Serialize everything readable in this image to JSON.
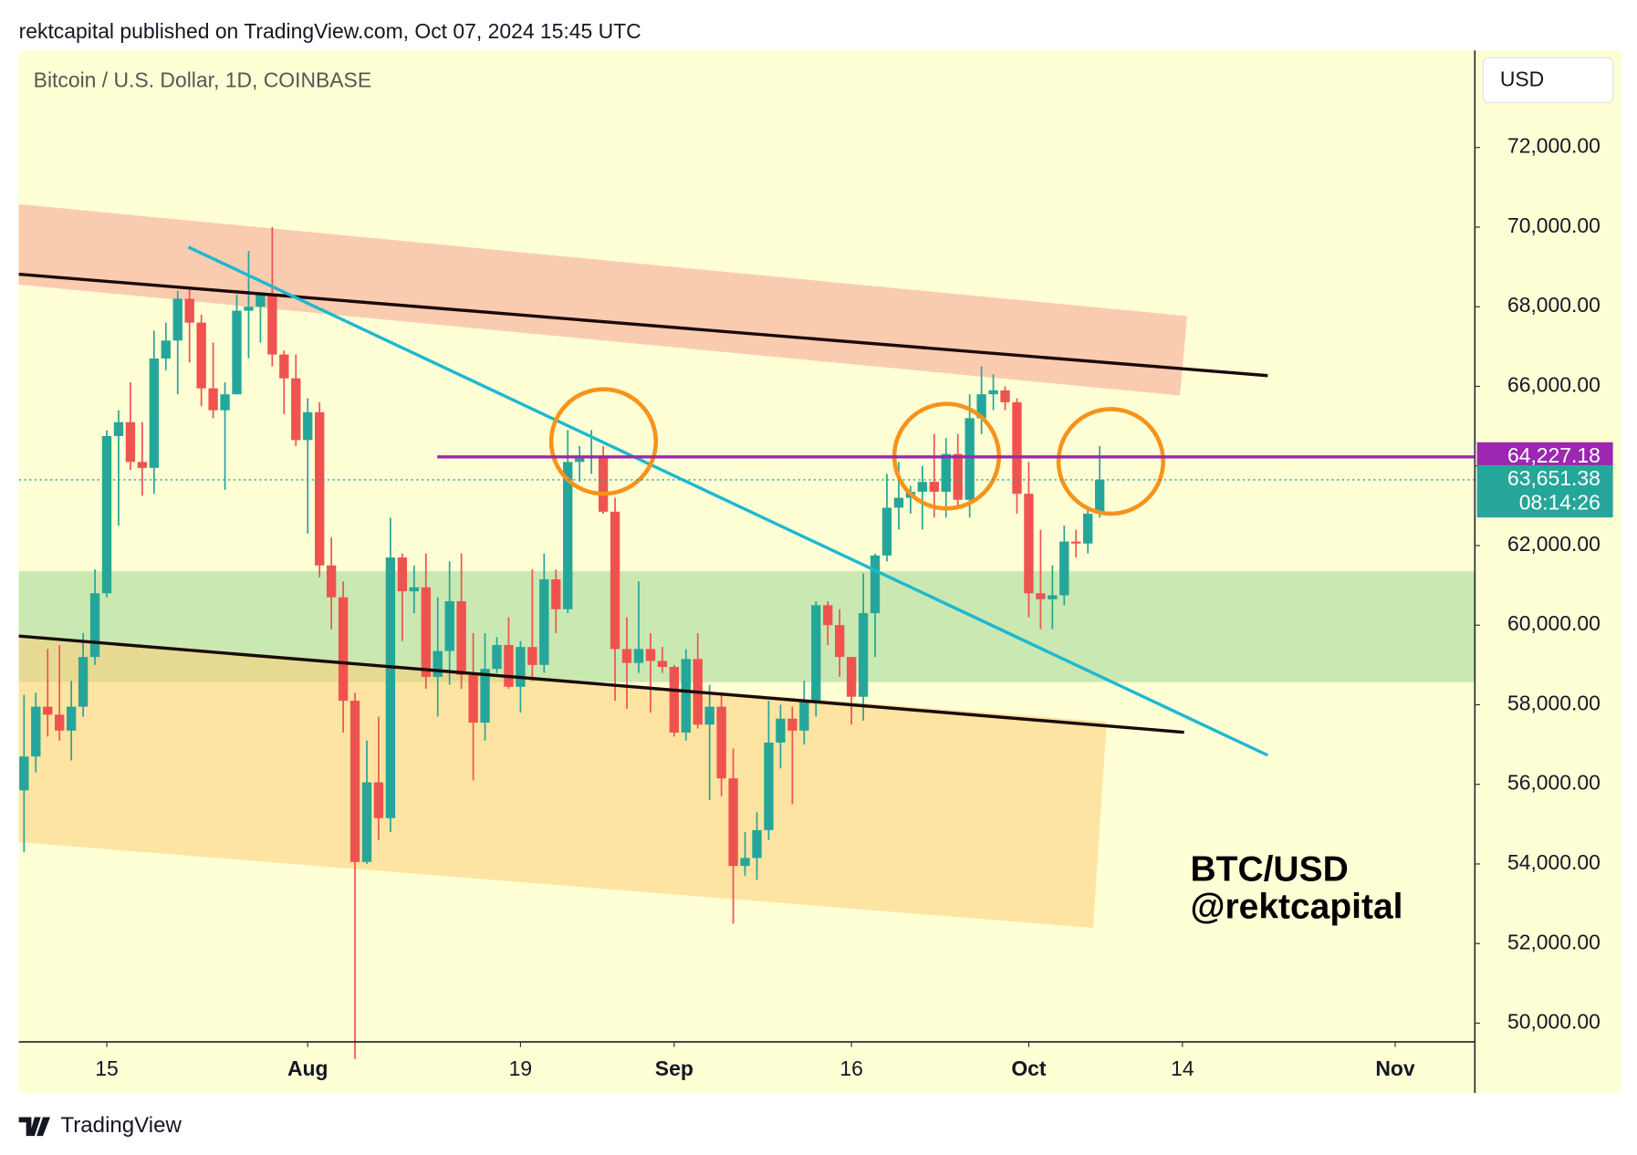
{
  "chart_data": {
    "type": "candlestick",
    "header": "rektcapital published on TradingView.com, Oct 07, 2024 15:45 UTC",
    "title": "Bitcoin / U.S. Dollar, 1D, COINBASE",
    "currency": "USD",
    "brand": "TradingView",
    "watermark": [
      "BTC/USD",
      "@rektcapital"
    ],
    "up_color": "#26a69a",
    "down_color": "#ef5350",
    "open": [
      55850,
      56700,
      57950,
      57750,
      57350,
      57950,
      59200,
      60800,
      64750,
      65100,
      64100,
      63950,
      66700,
      67150,
      68200,
      67600,
      65950,
      65400,
      65800,
      67900,
      68000,
      68300,
      66800,
      66200,
      64650,
      65350,
      61500,
      60700,
      58100,
      54050,
      56050,
      55150,
      61700,
      60850,
      60950,
      58700,
      59350,
      60600,
      58750,
      57550,
      58900,
      59500,
      58450,
      59450,
      59000,
      61150,
      60400,
      64100,
      64200,
      64250,
      62850,
      59400,
      59050,
      59400,
      59100,
      58950,
      57300,
      59150,
      57500,
      57950,
      56150,
      53950,
      54150,
      54850,
      57050,
      57650,
      57350,
      58100,
      60500,
      60000,
      59200,
      58200,
      60300,
      61750,
      62950,
      63200,
      63350,
      63600,
      63350,
      64300,
      63150,
      65200,
      65800,
      65900,
      65600,
      63300,
      60800,
      60650,
      60750,
      62100,
      62050,
      62800
    ],
    "high": [
      58250,
      58300,
      59400,
      59500,
      58600,
      59800,
      61400,
      64900,
      65400,
      66100,
      65100,
      67400,
      67600,
      68400,
      68500,
      67800,
      67100,
      66100,
      68300,
      69400,
      68300,
      70000,
      66900,
      66800,
      65700,
      65600,
      62200,
      61100,
      58300,
      57100,
      57700,
      62700,
      61800,
      61500,
      61800,
      60700,
      61600,
      61800,
      59800,
      59800,
      59700,
      60200,
      59600,
      61400,
      61800,
      61400,
      64900,
      64500,
      64900,
      64500,
      63200,
      60200,
      61100,
      59800,
      59450,
      59000,
      59400,
      59800,
      58500,
      58300,
      56900,
      54800,
      55300,
      58100,
      58000,
      57950,
      58600,
      60600,
      60600,
      60400,
      59200,
      61300,
      61800,
      63800,
      64100,
      63500,
      64000,
      64800,
      64700,
      64800,
      65800,
      66500,
      66300,
      66000,
      65700,
      64100,
      62400,
      61500,
      62500,
      62400,
      62900,
      64500
    ],
    "low": [
      54300,
      56300,
      57200,
      57100,
      56600,
      57700,
      59000,
      60700,
      62500,
      63900,
      63250,
      63300,
      66400,
      65800,
      66600,
      65500,
      65200,
      63400,
      65800,
      66700,
      67100,
      66500,
      65300,
      64500,
      62300,
      61200,
      59900,
      57300,
      49100,
      54000,
      54600,
      54800,
      59600,
      60300,
      58400,
      57700,
      58500,
      58400,
      56100,
      57100,
      58800,
      58400,
      57800,
      58600,
      58800,
      59800,
      60300,
      63600,
      63800,
      62800,
      58100,
      57900,
      58800,
      57800,
      58800,
      57200,
      57100,
      57400,
      55600,
      55700,
      52500,
      53700,
      53600,
      54600,
      56400,
      55500,
      57000,
      57700,
      59500,
      58700,
      57500,
      57600,
      59200,
      61600,
      62400,
      62800,
      62400,
      62700,
      62700,
      62950,
      62700,
      64800,
      65400,
      65400,
      62800,
      60200,
      59900,
      59900,
      60500,
      61700,
      61800,
      62700
    ],
    "close": [
      56700,
      57950,
      57750,
      57350,
      57950,
      59200,
      60800,
      64750,
      65100,
      64100,
      63950,
      66700,
      67150,
      68200,
      67600,
      65950,
      65400,
      65800,
      67900,
      68000,
      68300,
      66800,
      66200,
      64650,
      65350,
      61500,
      60700,
      58100,
      54050,
      56050,
      55150,
      61700,
      60850,
      60950,
      58700,
      59350,
      60600,
      58750,
      57550,
      58900,
      59500,
      58450,
      59450,
      59000,
      61150,
      60400,
      64100,
      64200,
      64250,
      62850,
      59400,
      59050,
      59400,
      59100,
      58950,
      57300,
      59150,
      57500,
      57950,
      56150,
      53950,
      54150,
      54850,
      57050,
      57650,
      57350,
      58100,
      60500,
      60000,
      59200,
      58200,
      60300,
      61750,
      62950,
      63200,
      63350,
      63600,
      63350,
      64300,
      63150,
      65200,
      65800,
      65900,
      65600,
      63300,
      60800,
      60650,
      60750,
      62100,
      62050,
      62800,
      63651.38
    ],
    "xlim": [
      -0.44,
      122.74
    ],
    "xticks": [
      {
        "value": 7,
        "label": "15"
      },
      {
        "value": 24,
        "label": "Aug"
      },
      {
        "value": 42,
        "label": "19"
      },
      {
        "value": 55,
        "label": "Sep"
      },
      {
        "value": 70,
        "label": "16"
      },
      {
        "value": 85,
        "label": "Oct"
      },
      {
        "value": 98,
        "label": "14"
      },
      {
        "value": 116,
        "label": "Nov"
      }
    ],
    "ylim": [
      49530,
      74440
    ],
    "yticks": [
      {
        "value": 50000,
        "label": "50,000.00"
      },
      {
        "value": 52000,
        "label": "52,000.00"
      },
      {
        "value": 54000,
        "label": "54,000.00"
      },
      {
        "value": 56000,
        "label": "56,000.00"
      },
      {
        "value": 58000,
        "label": "58,000.00"
      },
      {
        "value": 60000,
        "label": "60,000.00"
      },
      {
        "value": 62000,
        "label": "62,000.00"
      },
      {
        "value": 64000,
        "label": "64,000.00"
      },
      {
        "value": 66000,
        "label": "66,000.00"
      },
      {
        "value": 68000,
        "label": "68,000.00"
      },
      {
        "value": 70000,
        "label": "70,000.00"
      },
      {
        "value": 72000,
        "label": "72,000.00"
      }
    ],
    "price_lines": [
      {
        "value": 64227.18,
        "label": "64,227.18",
        "color": "#9c27b0"
      },
      {
        "value": 63651.38,
        "label": "63,651.38",
        "color": "#26a69a",
        "countdown": "08:14:26"
      }
    ]
  }
}
